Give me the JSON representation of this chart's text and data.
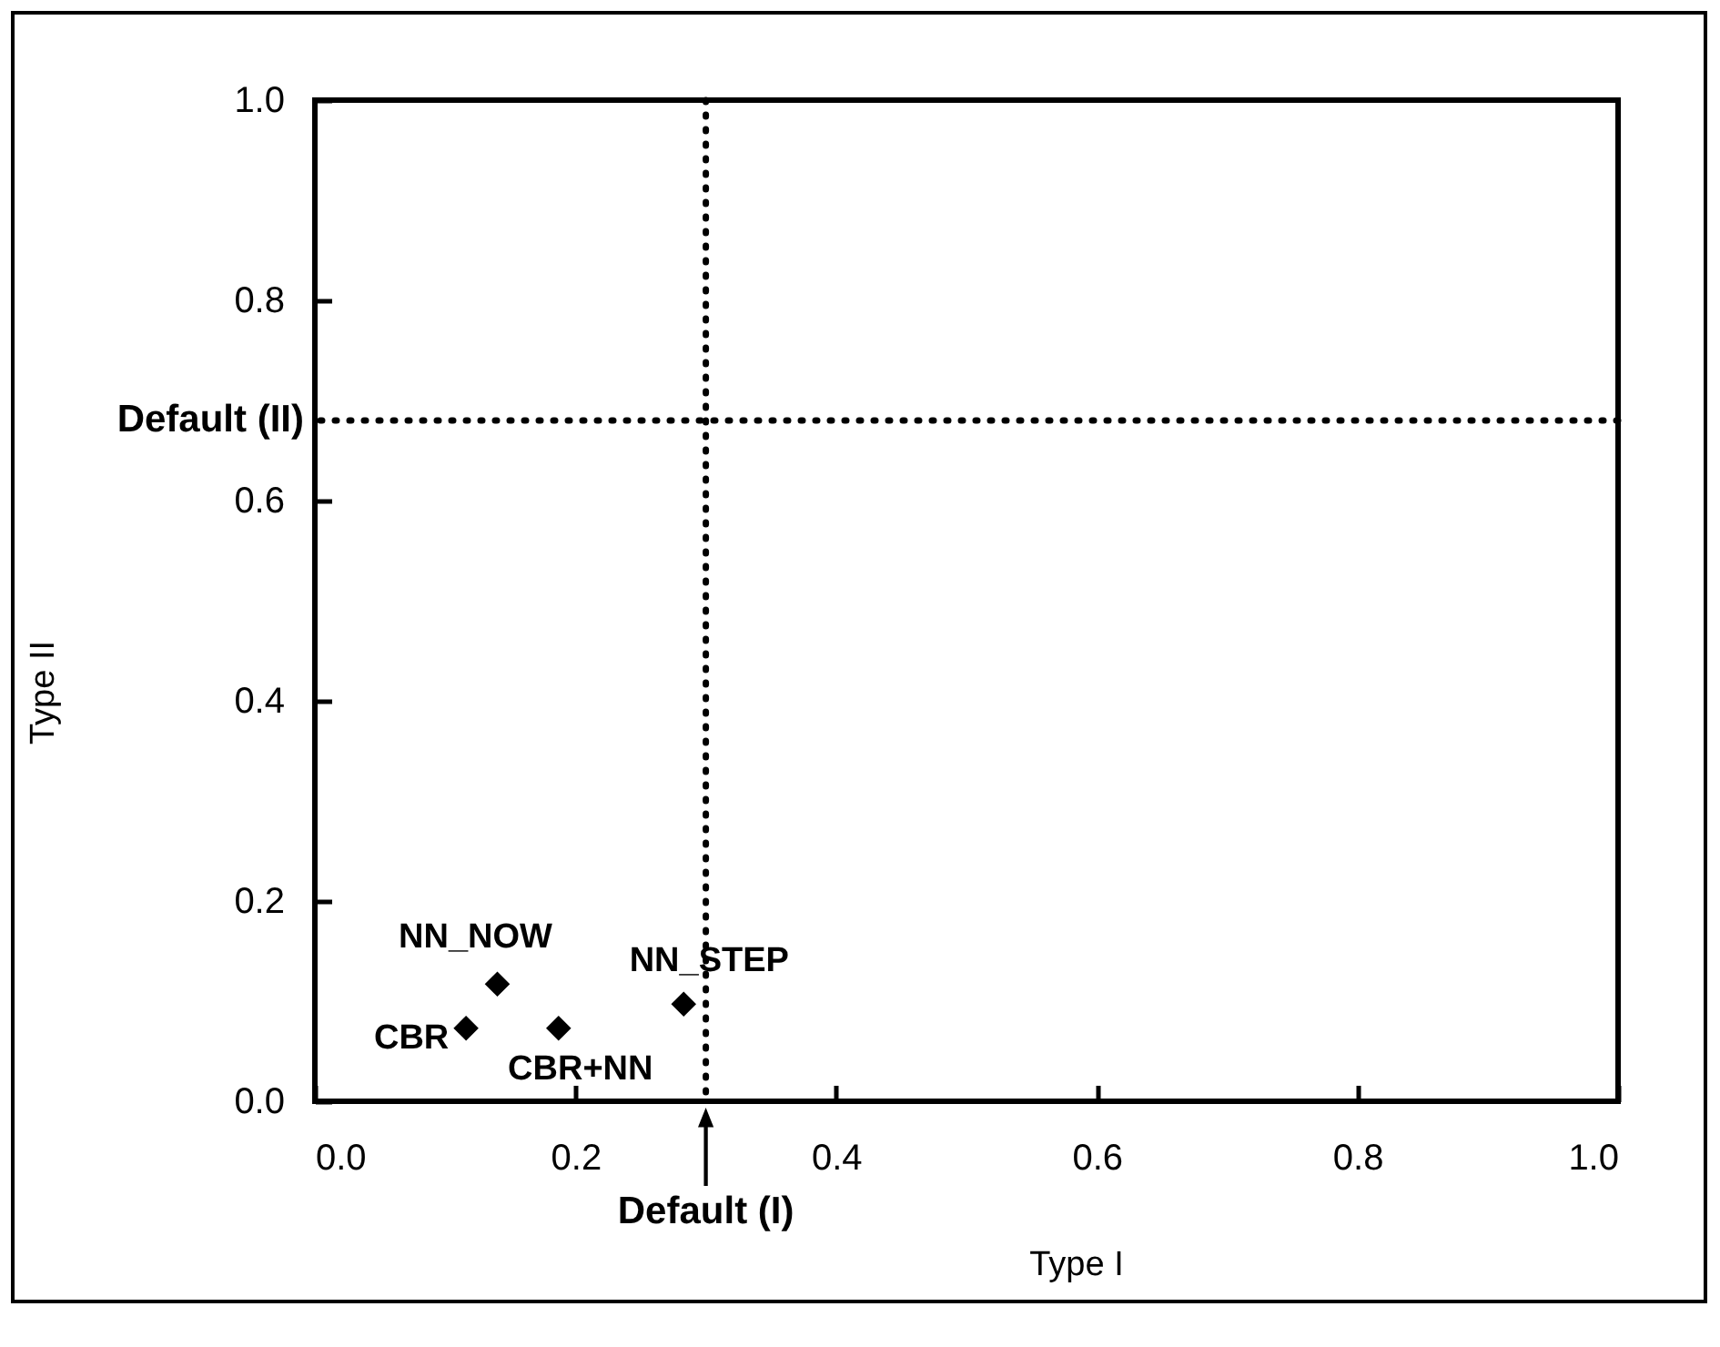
{
  "chart_data": {
    "type": "scatter",
    "xlabel": "Type I",
    "ylabel": "Type II",
    "xlim": [
      0,
      1
    ],
    "ylim": [
      0,
      1
    ],
    "xticks": [
      {
        "value": 0,
        "label": "0.0"
      },
      0.2,
      0.4,
      0.6,
      0.8,
      {
        "value": 1,
        "label": "1.0"
      }
    ],
    "yticks": [
      {
        "value": 0,
        "label": "0.0"
      },
      0.2,
      0.4,
      0.6,
      0.8,
      {
        "value": 1,
        "label": "1.0"
      }
    ],
    "series": [
      {
        "name": "CBR",
        "color": "#000000",
        "x": [
          0.116
        ],
        "values": [
          0.073
        ]
      },
      {
        "name": "NN_NOW",
        "color": "#000000",
        "x": [
          0.14
        ],
        "values": [
          0.117
        ]
      },
      {
        "name": "CBR+NN",
        "color": "#000000",
        "x": [
          0.187
        ],
        "values": [
          0.073
        ]
      },
      {
        "name": "NN_STEP",
        "color": "#000000",
        "x": [
          0.283
        ],
        "values": [
          0.097
        ]
      }
    ],
    "ref_lines": [
      {
        "axis": "x",
        "value": 0.3,
        "label": "Default (I)",
        "line_style": "dotted"
      },
      {
        "axis": "y",
        "value": 0.68,
        "label": "Default (II)",
        "line_style": "dotted"
      }
    ],
    "marker": "diamond",
    "grid": false
  }
}
